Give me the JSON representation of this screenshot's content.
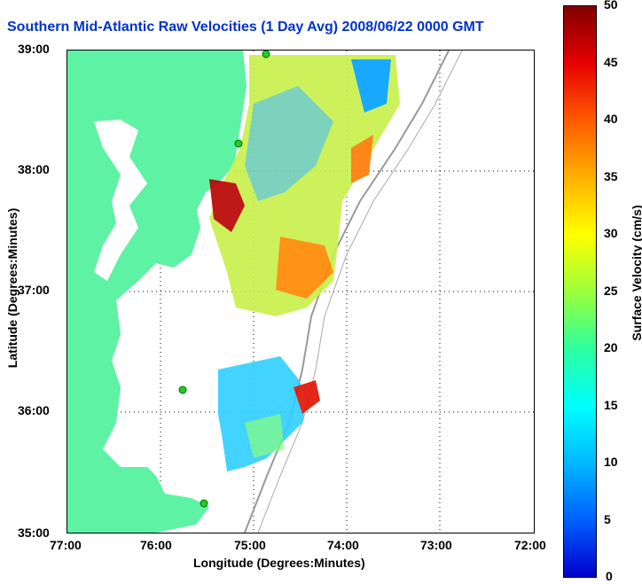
{
  "title": "Southern Mid-Atlantic Raw Velocities (1 Day Avg) 2008/06/22 0000 GMT",
  "xaxis": {
    "label": "Longitude (Degrees:Minutes)",
    "ticks": [
      "77:00",
      "76:00",
      "75:00",
      "74:00",
      "73:00",
      "72:00"
    ]
  },
  "yaxis": {
    "label": "Latitude (Degrees:Minutes)",
    "ticks": [
      "39:00",
      "38:00",
      "37:00",
      "36:00",
      "35:00"
    ]
  },
  "colorbar": {
    "label": "Surface Velocity (cm/s)",
    "ticks": [
      "50",
      "45",
      "40",
      "35",
      "30",
      "25",
      "20",
      "15",
      "10",
      "5",
      "0"
    ]
  },
  "colors": {
    "land": "#5ef2a4",
    "title": "#0033cc"
  }
}
